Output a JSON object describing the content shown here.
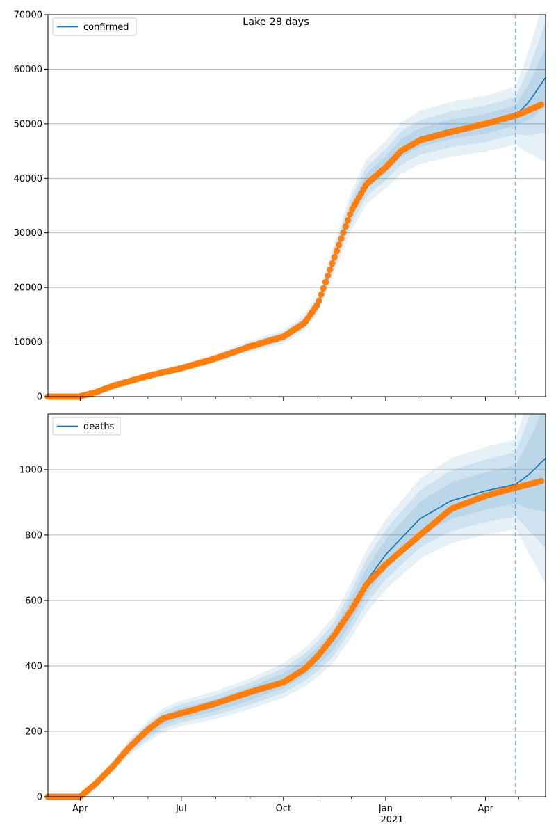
{
  "title": "Lake 28 days",
  "x_tick_labels": [
    "Apr",
    "Jul",
    "Oct",
    "Jan",
    "Apr"
  ],
  "x_year_label": "2021",
  "colors": {
    "model_line": "#1f77b4",
    "band": "#1f77b4",
    "observed": "#ff7f0e",
    "grid": "#b0b0b0",
    "forecast_line": "#1f77b4"
  },
  "chart_data": [
    {
      "type": "line",
      "legend": "confirmed",
      "legend_position": "top-left",
      "grid": "horizontal",
      "x_range": [
        "2020-03-03",
        "2021-05-25"
      ],
      "ylim": [
        0,
        70000
      ],
      "y_ticks": [
        0,
        10000,
        20000,
        30000,
        40000,
        50000,
        60000,
        70000
      ],
      "forecast_start": "2021-04-28",
      "model_curve": {
        "x": [
          "2020-03-03",
          "2020-03-31",
          "2020-04-15",
          "2020-05-01",
          "2020-06-01",
          "2020-07-01",
          "2020-08-01",
          "2020-09-01",
          "2020-10-01",
          "2020-10-20",
          "2020-11-01",
          "2020-11-15",
          "2020-12-01",
          "2020-12-15",
          "2021-01-01",
          "2021-01-15",
          "2021-02-01",
          "2021-03-01",
          "2021-04-01",
          "2021-04-28",
          "2021-05-10",
          "2021-05-25"
        ],
        "y": [
          0,
          0,
          800,
          2000,
          3800,
          5200,
          7000,
          9200,
          11000,
          13500,
          17000,
          25000,
          34000,
          39500,
          42500,
          45500,
          47500,
          49000,
          50000,
          51500,
          54000,
          58500
        ]
      },
      "observed": {
        "x": [
          "2020-03-03",
          "2020-03-31",
          "2020-04-15",
          "2020-05-01",
          "2020-06-01",
          "2020-07-01",
          "2020-08-01",
          "2020-09-01",
          "2020-10-01",
          "2020-10-20",
          "2020-11-01",
          "2020-11-15",
          "2020-12-01",
          "2020-12-15",
          "2021-01-01",
          "2021-01-15",
          "2021-02-01",
          "2021-03-01",
          "2021-04-01",
          "2021-04-28",
          "2021-05-10",
          "2021-05-21"
        ],
        "y": [
          0,
          0,
          800,
          2000,
          3800,
          5200,
          7000,
          9200,
          11000,
          13500,
          17000,
          25000,
          34000,
          39000,
          42000,
          45000,
          47000,
          48500,
          50000,
          51500,
          52500,
          53500
        ]
      }
    },
    {
      "type": "line",
      "legend": "deaths",
      "legend_position": "top-left",
      "grid": "horizontal",
      "x_range": [
        "2020-03-03",
        "2021-05-25"
      ],
      "ylim": [
        0,
        1170
      ],
      "y_ticks": [
        0,
        200,
        400,
        600,
        800,
        1000
      ],
      "forecast_start": "2021-04-28",
      "model_curve": {
        "x": [
          "2020-03-03",
          "2020-04-01",
          "2020-04-15",
          "2020-05-01",
          "2020-05-15",
          "2020-06-01",
          "2020-06-15",
          "2020-07-01",
          "2020-08-01",
          "2020-09-01",
          "2020-10-01",
          "2020-10-20",
          "2020-11-01",
          "2020-11-15",
          "2020-12-01",
          "2020-12-15",
          "2021-01-01",
          "2021-02-01",
          "2021-03-01",
          "2021-04-01",
          "2021-04-28",
          "2021-05-10",
          "2021-05-25"
        ],
        "y": [
          0,
          0,
          40,
          95,
          150,
          200,
          235,
          255,
          280,
          315,
          355,
          395,
          430,
          480,
          570,
          660,
          740,
          850,
          905,
          935,
          955,
          985,
          1035
        ]
      },
      "observed": {
        "x": [
          "2020-03-03",
          "2020-04-01",
          "2020-04-15",
          "2020-05-01",
          "2020-05-15",
          "2020-06-01",
          "2020-06-15",
          "2020-07-01",
          "2020-08-01",
          "2020-09-01",
          "2020-10-01",
          "2020-10-20",
          "2020-11-01",
          "2020-11-15",
          "2020-12-01",
          "2020-12-15",
          "2021-01-01",
          "2021-02-01",
          "2021-03-01",
          "2021-04-01",
          "2021-04-28",
          "2021-05-10",
          "2021-05-21"
        ],
        "y": [
          0,
          0,
          40,
          95,
          150,
          205,
          240,
          255,
          285,
          320,
          350,
          390,
          430,
          490,
          570,
          650,
          710,
          800,
          880,
          920,
          945,
          955,
          965
        ]
      }
    }
  ]
}
